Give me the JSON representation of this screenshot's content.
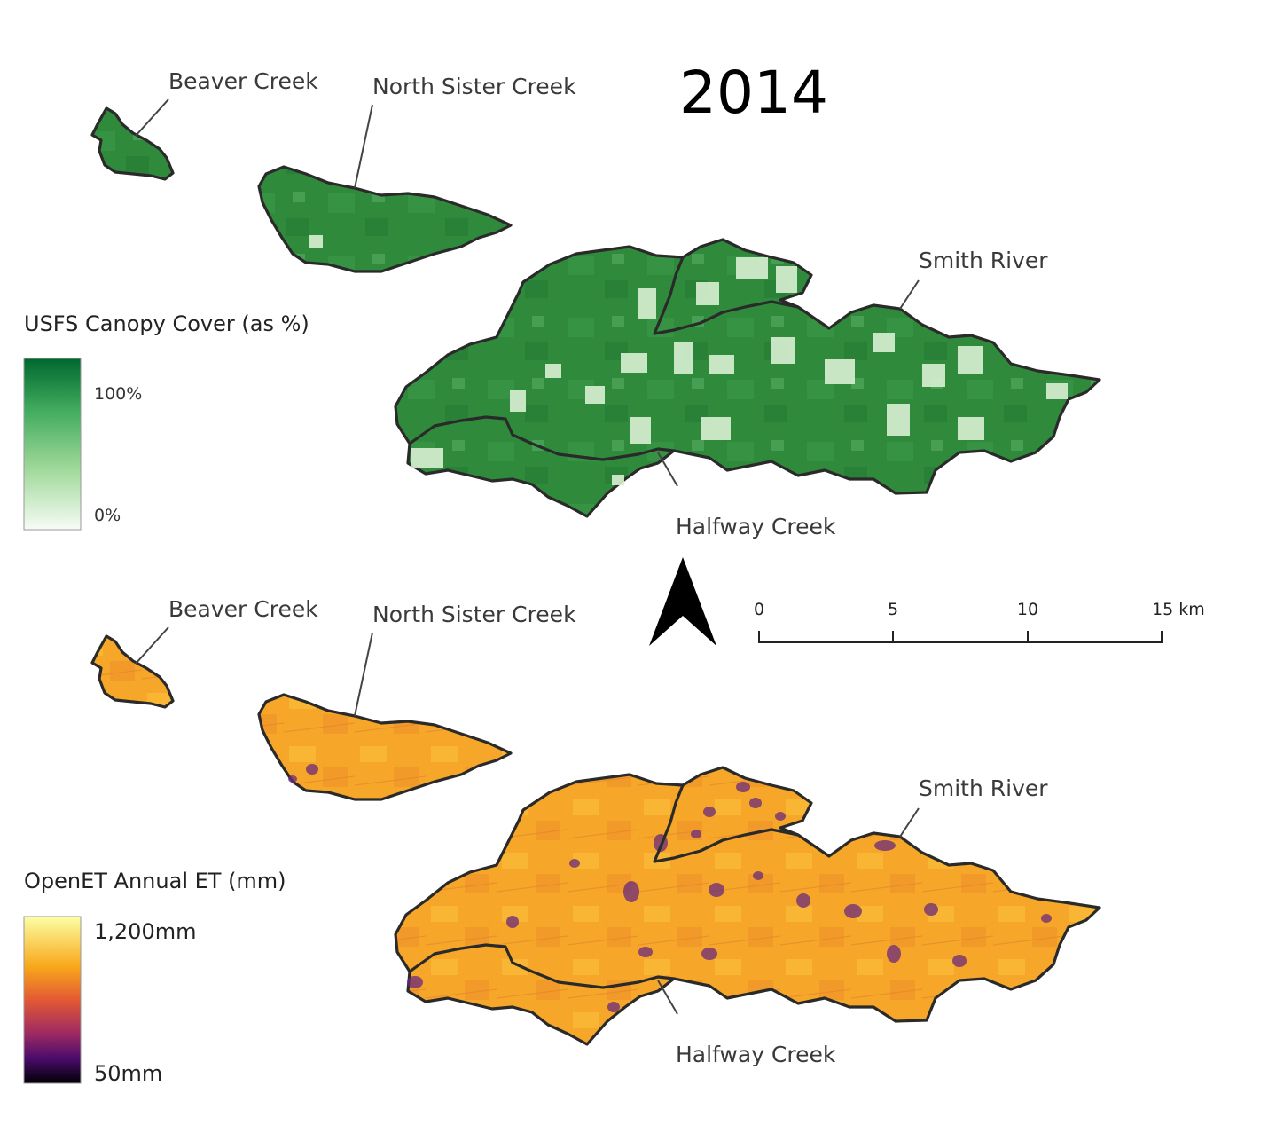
{
  "title": "2014",
  "panels": {
    "canopy": {
      "labels": {
        "beaver": "Beaver Creek",
        "north_sister": "North Sister Creek",
        "smith": "Smith River",
        "halfway": "Halfway Creek"
      },
      "legend": {
        "title": "USFS Canopy Cover (as %)",
        "max_label": "100%",
        "min_label": "0%",
        "colors": [
          "#f7fcf5",
          "#a1d99b",
          "#41ab5d",
          "#00682f"
        ]
      },
      "fill_colors": {
        "base": "#2f8a3c",
        "clearing": "#d9f0d3"
      }
    },
    "et": {
      "labels": {
        "beaver": "Beaver Creek",
        "north_sister": "North Sister Creek",
        "smith": "Smith River",
        "halfway": "Halfway Creek"
      },
      "legend": {
        "title": "OpenET Annual ET (mm)",
        "max_label": "1,200mm",
        "min_label": "50mm",
        "colors": [
          "#fcffa4",
          "#f8a81a",
          "#e35933",
          "#9e2a63",
          "#4a0c6b",
          "#000004"
        ]
      },
      "fill_colors": {
        "base": "#f6a729",
        "low": "#6a2a7a"
      }
    }
  },
  "scale_bar": {
    "ticks": [
      "0",
      "5",
      "10",
      "15 km"
    ]
  },
  "north_arrow": "north-arrow-icon"
}
